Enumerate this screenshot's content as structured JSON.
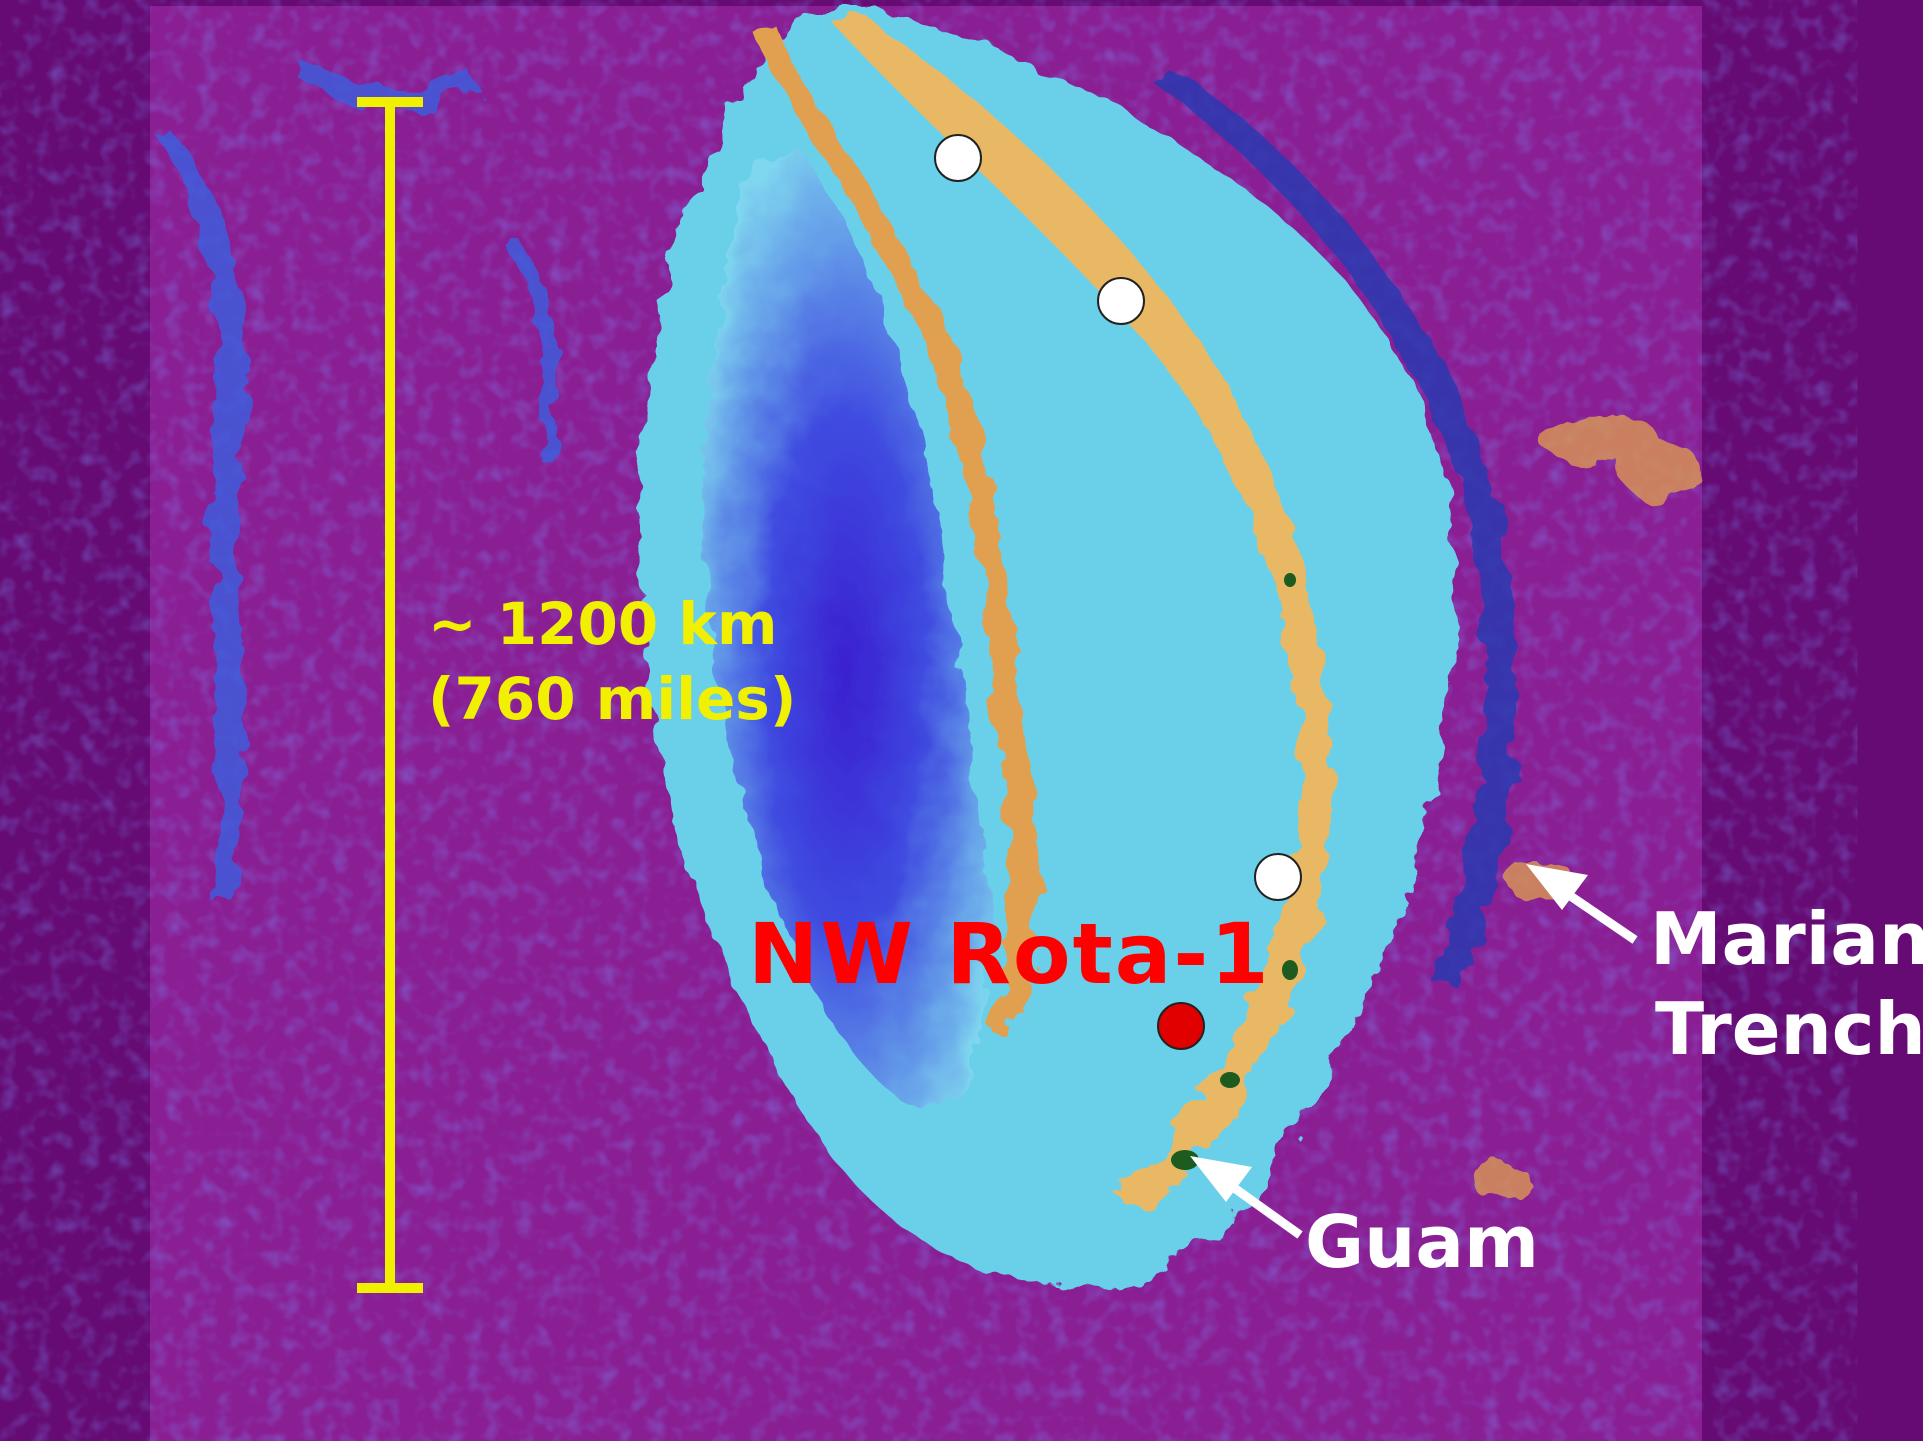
{
  "scale_bar": {
    "line1": "~ 1200 km",
    "line2": "(760 miles)",
    "color": "#f0f000"
  },
  "site_label": {
    "text": "NW Rota-1",
    "color": "#ff0000"
  },
  "trench_label": {
    "line1": "Mariana",
    "line2": "Trench"
  },
  "guam_label": {
    "text": "Guam"
  },
  "markers": [
    {
      "name": "white-marker-1",
      "color": "#ffffff"
    },
    {
      "name": "white-marker-2",
      "color": "#ffffff"
    },
    {
      "name": "white-marker-3",
      "color": "#ffffff"
    },
    {
      "name": "nw-rota-1-marker",
      "color": "#e00000"
    }
  ],
  "colors": {
    "background": "#660b73",
    "deep_sea": "#8a1f94",
    "basin": "#3a3ed8",
    "shelf": "#6ad0ea",
    "ridge": "#e0a050"
  }
}
